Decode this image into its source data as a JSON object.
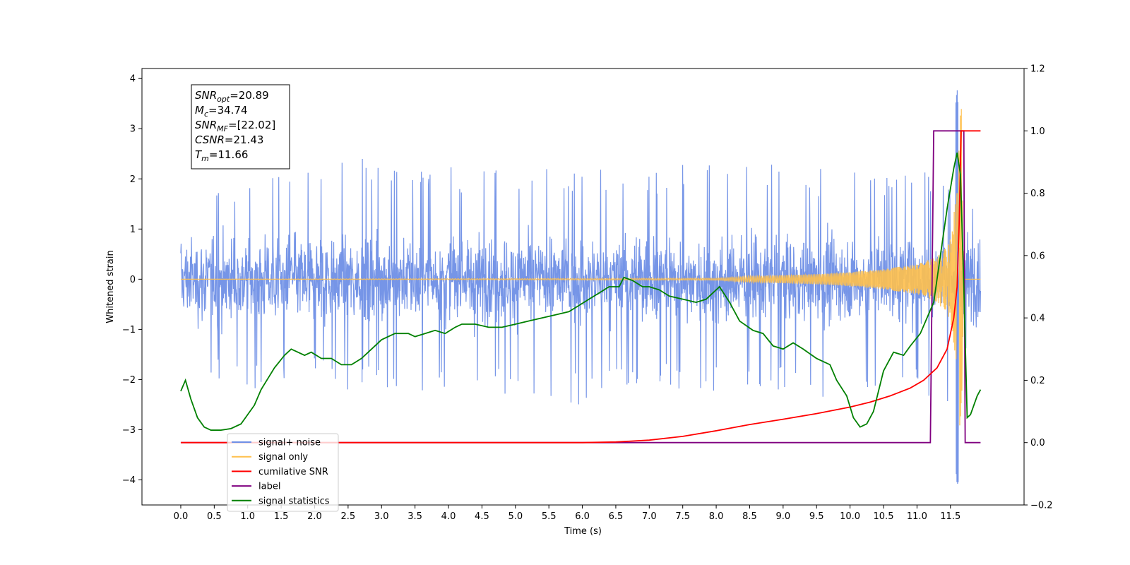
{
  "chart_data": {
    "type": "line",
    "xlabel": "Time (s)",
    "ylabel": "Whitened strain",
    "xlim": [
      -0.58,
      12.6
    ],
    "ylim": [
      -4.5,
      4.2
    ],
    "y2lim": [
      -0.2,
      1.2
    ],
    "x_ticks": [
      0.0,
      0.5,
      1.0,
      1.5,
      2.0,
      2.5,
      3.0,
      3.5,
      4.0,
      4.5,
      5.0,
      5.5,
      6.0,
      6.5,
      7.0,
      7.5,
      8.0,
      8.5,
      9.0,
      9.5,
      10.0,
      10.5,
      11.0,
      11.5
    ],
    "x_tick_labels": [
      "0.0",
      "0.5",
      "1.0",
      "1.5",
      "2.0",
      "2.5",
      "3.0",
      "3.5",
      "4.0",
      "4.5",
      "5.0",
      "5.5",
      "6.0",
      "6.5",
      "7.0",
      "7.5",
      "8.0",
      "8.5",
      "9.0",
      "9.5",
      "10.0",
      "10.5",
      "11.0",
      "11.5"
    ],
    "y_ticks": [
      4,
      3,
      2,
      1,
      0,
      -1,
      -2,
      -3,
      -4
    ],
    "y_tick_labels": [
      "4",
      "3",
      "2",
      "1",
      "0",
      "−1",
      "−2",
      "−3",
      "−4"
    ],
    "y2_ticks": [
      1.2,
      1.0,
      0.8,
      0.6,
      0.4,
      0.2,
      0.0,
      -0.2
    ],
    "y2_tick_labels": [
      "1.2",
      "1.0",
      "0.8",
      "0.6",
      "0.4",
      "0.2",
      "0.0",
      "−0.2"
    ],
    "grid": false,
    "legend_position": "lower-left",
    "series": [
      {
        "name": "signal+ noise",
        "axis": "left",
        "color": "#6f8fe6",
        "style": "dense noise band, roughly ±1.3 with spikes to ±2.5, peak 3.8 / −4.1 near t=11.6",
        "envelope_x": [
          0.0,
          0.5,
          1.0,
          1.5,
          2.0,
          2.5,
          3.0,
          3.5,
          4.0,
          4.5,
          5.0,
          5.5,
          6.0,
          6.5,
          7.0,
          7.5,
          8.0,
          8.5,
          9.0,
          9.5,
          10.0,
          10.5,
          11.0,
          11.5,
          11.6,
          11.66,
          11.7,
          11.95
        ],
        "envelope_upper": [
          1.4,
          1.7,
          2.2,
          2.4,
          2.4,
          2.4,
          2.4,
          2.2,
          2.3,
          2.3,
          2.2,
          2.2,
          2.3,
          2.3,
          2.2,
          2.3,
          2.3,
          2.3,
          2.4,
          2.2,
          2.2,
          2.2,
          2.1,
          2.3,
          3.8,
          2.4,
          1.6,
          1.4
        ],
        "envelope_lower": [
          -1.3,
          -2.0,
          -2.2,
          -2.1,
          -2.1,
          -2.2,
          -2.3,
          -2.3,
          -2.2,
          -2.3,
          -2.3,
          -2.5,
          -2.5,
          -2.3,
          -2.3,
          -2.2,
          -2.3,
          -2.3,
          -2.3,
          -2.4,
          -2.4,
          -2.4,
          -2.3,
          -2.5,
          -4.1,
          -3.9,
          -1.6,
          -1.3
        ]
      },
      {
        "name": "signal only",
        "axis": "left",
        "color": "#ffc04d",
        "style": "chirp waveform, amplitude growing toward merger",
        "amplitude_x": [
          0.0,
          8.0,
          8.5,
          9.0,
          9.5,
          10.0,
          10.5,
          11.0,
          11.3,
          11.5,
          11.6,
          11.66,
          11.7,
          11.95
        ],
        "amplitude": [
          0.0,
          0.02,
          0.06,
          0.08,
          0.1,
          0.14,
          0.2,
          0.3,
          0.45,
          0.8,
          1.8,
          3.7,
          0.0,
          0.0
        ]
      },
      {
        "name": "cumilative SNR",
        "axis": "right",
        "color": "#ff0000",
        "x": [
          0.0,
          6.0,
          6.5,
          7.0,
          7.5,
          8.0,
          8.5,
          9.0,
          9.5,
          10.0,
          10.3,
          10.6,
          10.9,
          11.1,
          11.3,
          11.45,
          11.55,
          11.6,
          11.63,
          11.66,
          11.7,
          11.95
        ],
        "y": [
          0.0,
          0.0,
          0.002,
          0.008,
          0.02,
          0.038,
          0.058,
          0.075,
          0.093,
          0.114,
          0.13,
          0.15,
          0.175,
          0.2,
          0.24,
          0.3,
          0.4,
          0.5,
          0.7,
          1.0,
          1.0,
          1.0
        ]
      },
      {
        "name": "label",
        "axis": "right",
        "color": "#800080",
        "x": [
          0.0,
          11.2,
          11.25,
          11.7,
          11.72,
          11.95
        ],
        "y": [
          0.0,
          0.0,
          1.0,
          1.0,
          0.0,
          0.0
        ]
      },
      {
        "name": "signal statistics",
        "axis": "right",
        "color": "#008000",
        "x": [
          0.0,
          0.07,
          0.15,
          0.25,
          0.35,
          0.45,
          0.6,
          0.75,
          0.9,
          1.0,
          1.1,
          1.2,
          1.4,
          1.55,
          1.65,
          1.75,
          1.85,
          1.95,
          2.1,
          2.25,
          2.4,
          2.55,
          2.7,
          2.85,
          3.0,
          3.2,
          3.4,
          3.5,
          3.65,
          3.8,
          3.95,
          4.1,
          4.2,
          4.4,
          4.6,
          4.8,
          5.0,
          5.2,
          5.4,
          5.6,
          5.8,
          5.95,
          6.1,
          6.25,
          6.4,
          6.55,
          6.62,
          6.75,
          6.9,
          7.0,
          7.15,
          7.3,
          7.5,
          7.7,
          7.85,
          7.95,
          8.05,
          8.2,
          8.35,
          8.55,
          8.7,
          8.85,
          9.0,
          9.15,
          9.3,
          9.5,
          9.7,
          9.8,
          9.95,
          10.05,
          10.15,
          10.25,
          10.35,
          10.5,
          10.65,
          10.8,
          10.9,
          11.05,
          11.15,
          11.25,
          11.35,
          11.45,
          11.55,
          11.6,
          11.65,
          11.7,
          11.75,
          11.8,
          11.9,
          11.95
        ],
        "y": [
          0.165,
          0.2,
          0.14,
          0.08,
          0.05,
          0.04,
          0.04,
          0.045,
          0.06,
          0.09,
          0.12,
          0.17,
          0.24,
          0.28,
          0.3,
          0.29,
          0.28,
          0.29,
          0.27,
          0.27,
          0.25,
          0.25,
          0.27,
          0.3,
          0.33,
          0.35,
          0.35,
          0.34,
          0.35,
          0.36,
          0.35,
          0.37,
          0.38,
          0.38,
          0.37,
          0.37,
          0.38,
          0.39,
          0.4,
          0.41,
          0.42,
          0.44,
          0.46,
          0.48,
          0.5,
          0.5,
          0.53,
          0.52,
          0.5,
          0.5,
          0.49,
          0.47,
          0.46,
          0.45,
          0.46,
          0.48,
          0.5,
          0.45,
          0.39,
          0.36,
          0.35,
          0.31,
          0.3,
          0.32,
          0.3,
          0.27,
          0.25,
          0.2,
          0.15,
          0.08,
          0.05,
          0.06,
          0.1,
          0.23,
          0.29,
          0.28,
          0.31,
          0.35,
          0.4,
          0.45,
          0.6,
          0.75,
          0.88,
          0.93,
          0.86,
          0.5,
          0.08,
          0.09,
          0.15,
          0.17
        ]
      }
    ],
    "annotations": [
      {
        "label": "SNR",
        "subscript": "opt",
        "value": "=20.89"
      },
      {
        "label": "M",
        "subscript": "c",
        "value": "=34.74"
      },
      {
        "label": "SNR",
        "subscript": "MF",
        "value": "=[22.02]"
      },
      {
        "label": "CSNR",
        "subscript": "",
        "value": "=21.43"
      },
      {
        "label": "T",
        "subscript": "m",
        "value": "=11.66"
      }
    ],
    "legend": [
      {
        "name": "signal+ noise",
        "color": "#6f8fe6"
      },
      {
        "name": "signal only",
        "color": "#ffc04d"
      },
      {
        "name": "cumilative SNR",
        "color": "#ff0000"
      },
      {
        "name": "label",
        "color": "#800080"
      },
      {
        "name": "signal statistics",
        "color": "#008000"
      }
    ]
  }
}
